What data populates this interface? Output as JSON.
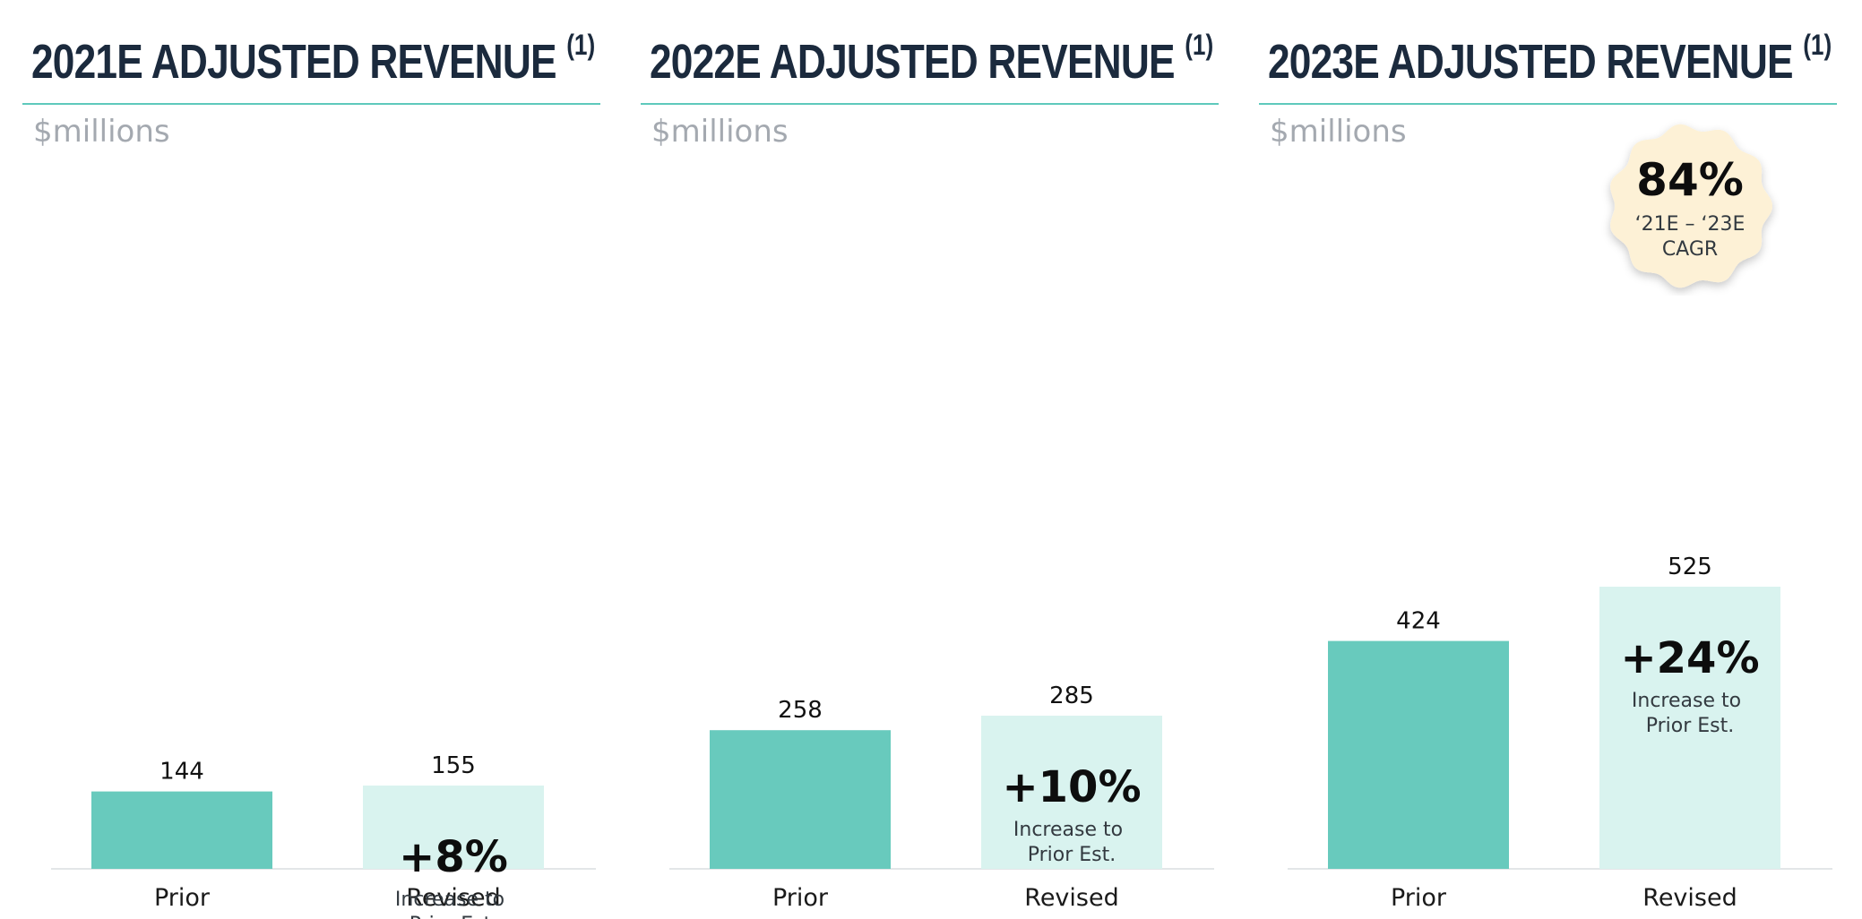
{
  "unit_label": "$millions",
  "colors": {
    "prior": "#68cabd",
    "revised": "#d9f3ef",
    "rule": "#5ec9bc",
    "title": "#1b2a3d"
  },
  "badge": {
    "value": "84%",
    "caption_line1": "‘21E – ‘23E",
    "caption_line2": "CAGR"
  },
  "chart_data": [
    {
      "type": "bar",
      "title": "2021E ADJUSTED REVENUE",
      "title_note": "(1)",
      "ylabel": "$millions",
      "categories": [
        "Prior",
        "Revised"
      ],
      "values": [
        144,
        155
      ],
      "value_labels": [
        "144",
        "155"
      ],
      "increase": {
        "value": "+8%",
        "caption_line1": "Increase to",
        "caption_line2": "Prior Est."
      }
    },
    {
      "type": "bar",
      "title": "2022E ADJUSTED REVENUE",
      "title_note": "(1)",
      "ylabel": "$millions",
      "categories": [
        "Prior",
        "Revised"
      ],
      "values": [
        258,
        285
      ],
      "value_labels": [
        "258",
        "285"
      ],
      "increase": {
        "value": "+10%",
        "caption_line1": "Increase to",
        "caption_line2": "Prior Est."
      }
    },
    {
      "type": "bar",
      "title": "2023E ADJUSTED REVENUE",
      "title_note": "(1)",
      "ylabel": "$millions",
      "categories": [
        "Prior",
        "Revised"
      ],
      "values": [
        424,
        525
      ],
      "value_labels": [
        "424",
        "525"
      ],
      "increase": {
        "value": "+24%",
        "caption_line1": "Increase to",
        "caption_line2": "Prior Est."
      }
    }
  ]
}
